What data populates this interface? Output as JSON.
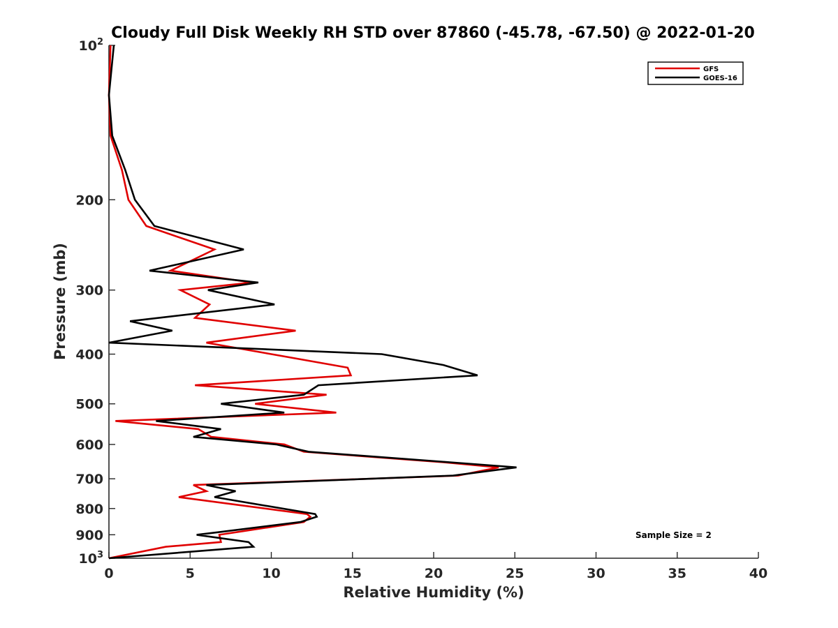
{
  "chart_data": {
    "type": "line",
    "title": "Cloudy Full Disk Weekly RH STD over 87860 (-45.78, -67.50) @ 2022-01-20",
    "xlabel": "Relative Humidity (%)",
    "ylabel": "Pressure (mb)",
    "xlim": [
      0,
      40
    ],
    "ylim": [
      100,
      1000
    ],
    "y_scale": "log",
    "y_reversed": true,
    "x_ticks": [
      0,
      5,
      10,
      15,
      20,
      25,
      30,
      35,
      40
    ],
    "y_ticks": [
      {
        "value": 100,
        "label": "10",
        "sup": "2"
      },
      {
        "value": 200,
        "label": "200"
      },
      {
        "value": 300,
        "label": "300"
      },
      {
        "value": 400,
        "label": "400"
      },
      {
        "value": 500,
        "label": "500"
      },
      {
        "value": 600,
        "label": "600"
      },
      {
        "value": 700,
        "label": "700"
      },
      {
        "value": 800,
        "label": "800"
      },
      {
        "value": 900,
        "label": "900"
      },
      {
        "value": 1000,
        "label": "10",
        "sup": "3"
      }
    ],
    "grid": false,
    "legend_position": "top-right",
    "annotation": "Sample Size = 2",
    "series": [
      {
        "name": "GFS",
        "color": "#e00000",
        "points": [
          [
            0.1,
            100
          ],
          [
            0.0,
            125
          ],
          [
            0.1,
            150
          ],
          [
            0.8,
            175
          ],
          [
            1.2,
            200
          ],
          [
            2.3,
            225
          ],
          [
            6.5,
            250
          ],
          [
            3.8,
            275
          ],
          [
            8.8,
            290
          ],
          [
            4.4,
            300
          ],
          [
            6.2,
            320
          ],
          [
            5.3,
            340
          ],
          [
            11.5,
            360
          ],
          [
            6.0,
            380
          ],
          [
            10.0,
            400
          ],
          [
            14.7,
            425
          ],
          [
            14.9,
            440
          ],
          [
            5.3,
            460
          ],
          [
            13.4,
            480
          ],
          [
            9.0,
            500
          ],
          [
            14.0,
            520
          ],
          [
            0.4,
            540
          ],
          [
            5.5,
            560
          ],
          [
            6.3,
            580
          ],
          [
            10.8,
            600
          ],
          [
            12.0,
            620
          ],
          [
            20.6,
            650
          ],
          [
            24.0,
            665
          ],
          [
            21.5,
            690
          ],
          [
            5.2,
            720
          ],
          [
            6.0,
            740
          ],
          [
            4.3,
            760
          ],
          [
            12.2,
            820
          ],
          [
            12.4,
            830
          ],
          [
            12.0,
            850
          ],
          [
            6.8,
            900
          ],
          [
            6.9,
            930
          ],
          [
            3.5,
            950
          ],
          [
            0.0,
            1000
          ]
        ]
      },
      {
        "name": "GOES-16",
        "color": "#000000",
        "points": [
          [
            0.3,
            100
          ],
          [
            0.0,
            125
          ],
          [
            0.2,
            150
          ],
          [
            1.0,
            175
          ],
          [
            1.6,
            200
          ],
          [
            2.8,
            225
          ],
          [
            8.3,
            250
          ],
          [
            2.5,
            275
          ],
          [
            9.2,
            290
          ],
          [
            6.1,
            300
          ],
          [
            10.2,
            320
          ],
          [
            1.3,
            345
          ],
          [
            3.9,
            360
          ],
          [
            0.0,
            380
          ],
          [
            16.8,
            400
          ],
          [
            20.6,
            420
          ],
          [
            22.7,
            440
          ],
          [
            12.9,
            460
          ],
          [
            12.0,
            480
          ],
          [
            6.9,
            500
          ],
          [
            10.8,
            520
          ],
          [
            2.9,
            540
          ],
          [
            6.9,
            560
          ],
          [
            5.2,
            580
          ],
          [
            10.3,
            600
          ],
          [
            12.3,
            620
          ],
          [
            21.0,
            650
          ],
          [
            25.1,
            665
          ],
          [
            21.2,
            690
          ],
          [
            6.0,
            720
          ],
          [
            7.8,
            740
          ],
          [
            6.5,
            760
          ],
          [
            12.7,
            820
          ],
          [
            12.8,
            830
          ],
          [
            11.8,
            850
          ],
          [
            6.7,
            890
          ],
          [
            5.4,
            900
          ],
          [
            8.6,
            930
          ],
          [
            8.9,
            950
          ],
          [
            0.0,
            1000
          ]
        ]
      }
    ]
  }
}
